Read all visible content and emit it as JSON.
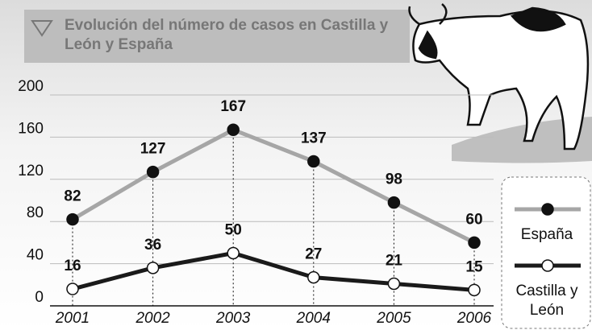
{
  "chart_data": {
    "type": "line",
    "title": "Evolución del número de casos en Castilla y León y España",
    "categories": [
      "2001",
      "2002",
      "2003",
      "2004",
      "2005",
      "2006"
    ],
    "series": [
      {
        "name": "España",
        "color": "#a6a6a6",
        "marker": "#111111",
        "values": [
          82,
          127,
          167,
          137,
          98,
          60
        ]
      },
      {
        "name": "Castilla y León",
        "color": "#1a1a1a",
        "marker": "#ffffff",
        "values": [
          16,
          36,
          50,
          27,
          21,
          15
        ]
      }
    ],
    "ylim": [
      0,
      200
    ],
    "yticks": [
      0,
      40,
      80,
      120,
      160,
      200
    ],
    "grid": true
  }
}
